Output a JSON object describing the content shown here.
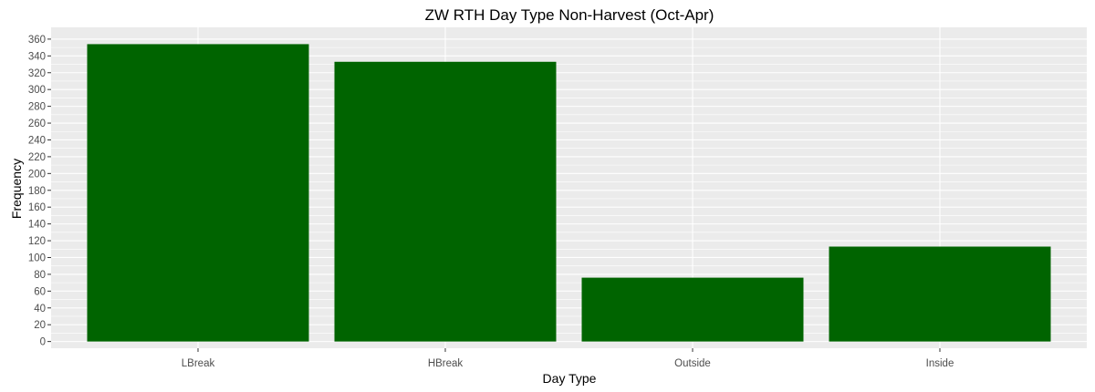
{
  "chart_data": {
    "type": "bar",
    "title": "ZW RTH Day Type Non-Harvest (Oct-Apr)",
    "xlabel": "Day Type",
    "ylabel": "Frequency",
    "categories": [
      "LBreak",
      "HBreak",
      "Outside",
      "Inside"
    ],
    "values": [
      354,
      333,
      76,
      113
    ],
    "ylim": [
      0,
      370
    ],
    "yticks": [
      0,
      20,
      40,
      60,
      80,
      100,
      120,
      140,
      160,
      180,
      200,
      220,
      240,
      260,
      280,
      300,
      320,
      340,
      360
    ],
    "grid": true,
    "legend": "none",
    "bar_color": "#006400",
    "panel_background": "#ebebeb",
    "grid_color": "#ffffff"
  }
}
